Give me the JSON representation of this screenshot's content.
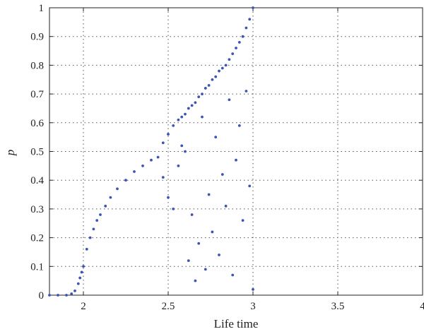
{
  "chart_data": {
    "type": "scatter",
    "xlabel": "Life time",
    "ylabel": "p",
    "xlim": [
      1.8,
      4.0
    ],
    "ylim": [
      0,
      1
    ],
    "xticks": [
      2,
      2.5,
      3,
      3.5,
      4
    ],
    "xtick_labels": [
      "2",
      "2.5",
      "3",
      "3.5",
      "4"
    ],
    "yticks": [
      0,
      0.1,
      0.2,
      0.3,
      0.4,
      0.5,
      0.6,
      0.7,
      0.8,
      0.9,
      1
    ],
    "ytick_labels": [
      "0",
      "0.1",
      "0.2",
      "0.3",
      "0.4",
      "0.5",
      "0.6",
      "0.7",
      "0.8",
      "0.9",
      "1"
    ],
    "grid": true,
    "marker_color": "#3a55b4",
    "series": [
      {
        "x": [
          1.8,
          1.85,
          1.9,
          1.93,
          1.95,
          1.97,
          1.98,
          1.99,
          2.0,
          2.02,
          2.04,
          2.06,
          2.08,
          2.1,
          2.13,
          2.16,
          2.2,
          2.25,
          2.3,
          2.35,
          2.4,
          2.44,
          2.47,
          2.5,
          2.53,
          2.56,
          2.58,
          2.6,
          2.62,
          2.64,
          2.66,
          2.68,
          2.7,
          2.72,
          2.74,
          2.76,
          2.78,
          2.8,
          2.82,
          2.84,
          2.86,
          2.88,
          2.9,
          2.92,
          2.94,
          2.96,
          2.98,
          3.0,
          2.47,
          2.5,
          2.53,
          2.56,
          2.58,
          2.6,
          2.62,
          2.64,
          2.66,
          2.68,
          2.7,
          2.72,
          2.74,
          2.76,
          2.78,
          2.8,
          2.82,
          2.84,
          2.86,
          2.88,
          2.9,
          2.92,
          2.94,
          2.96,
          2.98,
          3.0
        ],
        "y": [
          0.0,
          0.0,
          0.0,
          0.005,
          0.015,
          0.04,
          0.06,
          0.08,
          0.1,
          0.16,
          0.2,
          0.23,
          0.26,
          0.28,
          0.31,
          0.34,
          0.37,
          0.4,
          0.43,
          0.45,
          0.47,
          0.48,
          0.53,
          0.56,
          0.59,
          0.61,
          0.62,
          0.63,
          0.65,
          0.66,
          0.67,
          0.69,
          0.7,
          0.72,
          0.73,
          0.75,
          0.76,
          0.78,
          0.79,
          0.8,
          0.82,
          0.84,
          0.86,
          0.88,
          0.9,
          0.93,
          0.96,
          1.0,
          0.41,
          0.34,
          0.3,
          0.45,
          0.52,
          0.5,
          0.12,
          0.28,
          0.05,
          0.18,
          0.62,
          0.09,
          0.35,
          0.22,
          0.55,
          0.14,
          0.42,
          0.31,
          0.68,
          0.07,
          0.47,
          0.59,
          0.26,
          0.71,
          0.38,
          0.02
        ]
      }
    ]
  }
}
